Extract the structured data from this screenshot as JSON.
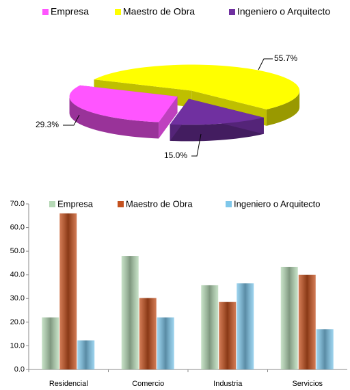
{
  "chart_data": [
    {
      "type": "pie",
      "categories": [
        "Empresa",
        "Maestro de Obra",
        "Ingeniero o Arquitecto"
      ],
      "values": [
        29.3,
        55.7,
        15.0
      ],
      "value_labels": [
        "29.3%",
        "55.7%",
        "15.0%"
      ],
      "colors": [
        "#ff55ff",
        "#ffff00",
        "#7030a0"
      ]
    },
    {
      "type": "bar",
      "categories": [
        "Residencial",
        "Comercio",
        "Industria",
        "Servicios"
      ],
      "series": [
        {
          "name": "Empresa",
          "color": "#b5d8b5",
          "values": [
            22,
            48,
            35.6,
            43.4
          ]
        },
        {
          "name": "Maestro de Obra",
          "color": "#c4511f",
          "values": [
            66,
            30.2,
            28.6,
            40
          ]
        },
        {
          "name": "Ingeniero o Arquitecto",
          "color": "#7fc7ea",
          "values": [
            12.3,
            22,
            36.4,
            17
          ]
        }
      ],
      "ylim": [
        0,
        70
      ],
      "yticks": [
        {
          "value": 0,
          "label": "0.0"
        },
        {
          "value": 10,
          "label": "10.0"
        },
        {
          "value": 20,
          "label": "20.0"
        },
        {
          "value": 30,
          "label": "30.0"
        },
        {
          "value": 40,
          "label": "40.0"
        },
        {
          "value": 50,
          "label": "50.0"
        },
        {
          "value": 60,
          "label": "60.0"
        },
        {
          "value": 70,
          "label": "70.0"
        }
      ]
    }
  ]
}
